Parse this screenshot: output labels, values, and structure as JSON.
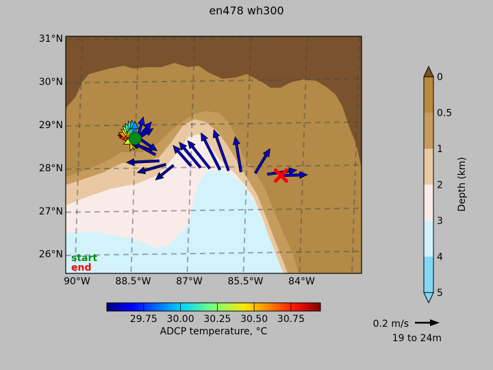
{
  "title": "en478 wh300",
  "map": {
    "lat_labels": [
      "31°N",
      "30°N",
      "29°N",
      "28°N",
      "27°N",
      "26°N"
    ],
    "lon_labels": [
      "90°W",
      "88.5°W",
      "87°W",
      "85.5°W",
      "84°W"
    ],
    "legend": {
      "start": "start",
      "end": "end"
    },
    "colors": {
      "land": "#7a522d",
      "shelf_0_05": "#b48a48",
      "depth_05_1": "#c59c5d",
      "depth_1_2": "#e9c9a3",
      "depth_2_3": "#f9ece8",
      "depth_3_4": "#d2f3fb",
      "start_marker": "#0a8a1a",
      "end_marker": "#ff0000"
    }
  },
  "depth_colorbar": {
    "label": "Depth (km)",
    "ticks": [
      "0",
      "0.5",
      "1",
      "2",
      "3",
      "4",
      "5"
    ],
    "colors": [
      "#b88a3c",
      "#c59c5d",
      "#e9c9a3",
      "#f9ece8",
      "#d2f3fb",
      "#84d8f4"
    ],
    "top_arrow_color": "#7a522d"
  },
  "temp_colorbar": {
    "label": "ADCP temperature, °C",
    "ticks": [
      "29.75",
      "30.00",
      "30.25",
      "30.50",
      "30.75"
    ],
    "range": [
      29.5,
      30.95
    ]
  },
  "quiver_key": {
    "speed_label": "0.2 m/s",
    "depth_range": "19 to 24m"
  },
  "chart_data": {
    "type": "quiver-map",
    "title": "en478 wh300",
    "x_range_lon": [
      -90.3,
      -82.4
    ],
    "y_range_lat": [
      25.55,
      31.05
    ],
    "start": [
      -88.45,
      28.68
    ],
    "end": [
      -84.55,
      27.82
    ],
    "arrows": [
      {
        "lon": -88.45,
        "lat": 28.68,
        "u": -0.42,
        "v": 0.08,
        "temp": 30.9
      },
      {
        "lon": -88.45,
        "lat": 28.68,
        "u": -0.38,
        "v": 0.02,
        "temp": 30.7
      },
      {
        "lon": -88.45,
        "lat": 28.68,
        "u": -0.4,
        "v": 0.14,
        "temp": 30.55
      },
      {
        "lon": -88.45,
        "lat": 28.68,
        "u": -0.34,
        "v": 0.22,
        "temp": 30.4
      },
      {
        "lon": -88.45,
        "lat": 28.68,
        "u": -0.3,
        "v": 0.3,
        "temp": 30.3
      },
      {
        "lon": -88.45,
        "lat": 28.68,
        "u": -0.24,
        "v": 0.36,
        "temp": 30.15
      },
      {
        "lon": -88.45,
        "lat": 28.68,
        "u": -0.16,
        "v": 0.42,
        "temp": 30.1
      },
      {
        "lon": -88.45,
        "lat": 28.68,
        "u": -0.08,
        "v": 0.44,
        "temp": 29.95
      },
      {
        "lon": -88.45,
        "lat": 28.68,
        "u": 0.0,
        "v": 0.42,
        "temp": 29.9
      },
      {
        "lon": -88.45,
        "lat": 28.68,
        "u": -0.12,
        "v": -0.3,
        "temp": 30.5
      },
      {
        "lon": -88.45,
        "lat": 28.68,
        "u": -0.02,
        "v": -0.28,
        "temp": 30.45
      },
      {
        "lon": -88.45,
        "lat": 28.68,
        "u": -0.28,
        "v": -0.14,
        "temp": 30.35
      },
      {
        "lon": -88.38,
        "lat": 28.7,
        "u": 0.14,
        "v": 0.5,
        "temp": 29.7
      },
      {
        "lon": -88.36,
        "lat": 28.7,
        "u": 0.32,
        "v": 0.38,
        "temp": 29.65
      },
      {
        "lon": -88.34,
        "lat": 28.7,
        "u": 0.34,
        "v": 0.22,
        "temp": 29.6
      },
      {
        "lon": -88.3,
        "lat": 28.66,
        "u": 0.4,
        "v": -0.28,
        "temp": 29.6
      },
      {
        "lon": -88.0,
        "lat": 28.4,
        "u": -0.5,
        "v": 0.18,
        "temp": 29.6
      },
      {
        "lon": -87.9,
        "lat": 28.3,
        "u": -0.62,
        "v": 0.34,
        "temp": 29.6
      },
      {
        "lon": -87.8,
        "lat": 28.16,
        "u": -0.8,
        "v": -0.04,
        "temp": 29.55
      },
      {
        "lon": -87.62,
        "lat": 28.08,
        "u": -0.7,
        "v": -0.2,
        "temp": 29.55
      },
      {
        "lon": -87.42,
        "lat": 28.06,
        "u": -0.44,
        "v": -0.36,
        "temp": 29.55
      },
      {
        "lon": -86.95,
        "lat": 28.04,
        "u": -0.44,
        "v": 0.5,
        "temp": 29.6
      },
      {
        "lon": -86.7,
        "lat": 28.0,
        "u": -0.52,
        "v": 0.62,
        "temp": 29.6
      },
      {
        "lon": -86.45,
        "lat": 27.98,
        "u": -0.54,
        "v": 0.68,
        "temp": 29.6
      },
      {
        "lon": -86.18,
        "lat": 27.95,
        "u": -0.46,
        "v": 0.9,
        "temp": 29.6
      },
      {
        "lon": -85.95,
        "lat": 27.93,
        "u": -0.36,
        "v": 1.0,
        "temp": 29.6
      },
      {
        "lon": -85.62,
        "lat": 27.9,
        "u": -0.14,
        "v": 0.86,
        "temp": 29.6
      },
      {
        "lon": -85.24,
        "lat": 27.87,
        "u": 0.36,
        "v": 0.6,
        "temp": 29.6
      },
      {
        "lon": -84.92,
        "lat": 27.85,
        "u": 0.72,
        "v": 0.1,
        "temp": 29.6
      },
      {
        "lon": -84.55,
        "lat": 27.82,
        "u": 0.64,
        "v": 0.02,
        "temp": 29.6
      }
    ]
  }
}
